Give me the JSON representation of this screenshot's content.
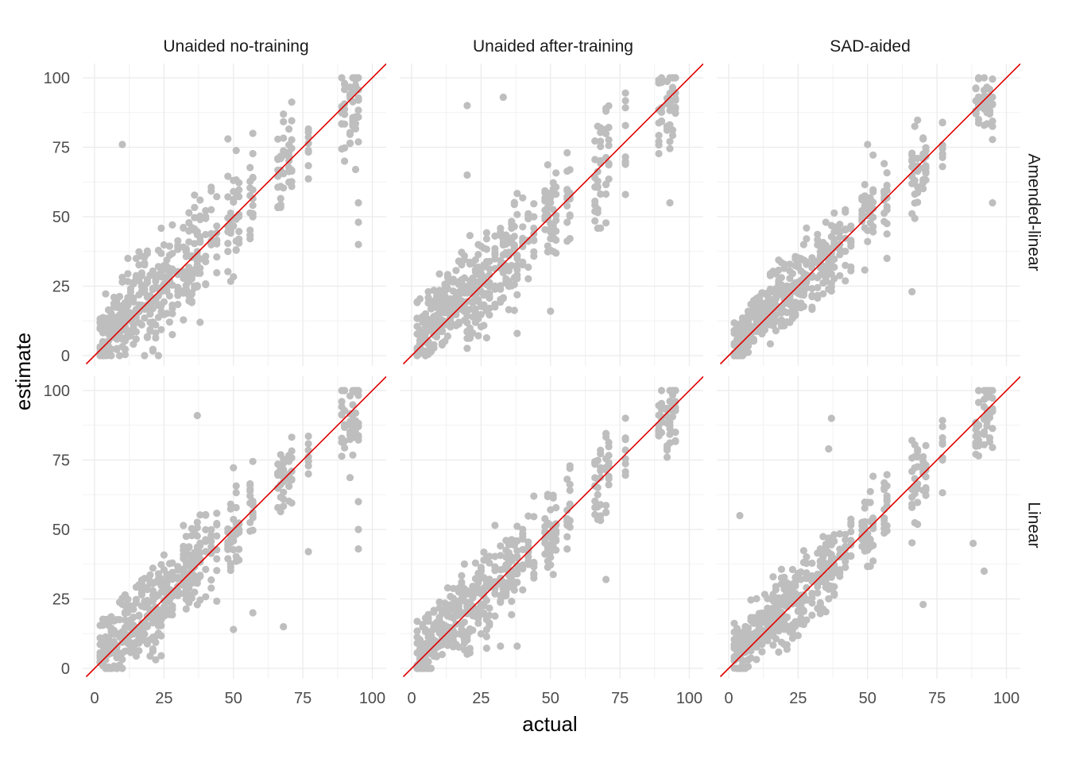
{
  "chart_data": {
    "type": "scatter",
    "facet_columns": [
      "Unaided no-training",
      "Unaided after-training",
      "SAD-aided"
    ],
    "facet_rows": [
      "Amended-linear",
      "Linear"
    ],
    "xlabel": "actual",
    "ylabel": "estimate",
    "xlim": [
      0,
      100
    ],
    "ylim": [
      0,
      100
    ],
    "x_ticks": [
      0,
      25,
      50,
      75,
      100
    ],
    "y_ticks": [
      0,
      25,
      50,
      75,
      100
    ],
    "grid": true,
    "point_color": "#bebebe",
    "reference_line": {
      "slope": 1,
      "intercept": 0,
      "color": "#e00000"
    },
    "actual_levels": [
      2,
      3,
      4,
      5,
      6,
      7,
      8,
      9,
      10,
      11,
      12,
      13,
      14,
      15,
      16,
      17,
      18,
      19,
      20,
      21,
      22,
      23,
      24,
      25,
      26,
      27,
      28,
      30,
      32,
      33,
      34,
      35,
      36,
      37,
      38,
      40,
      42,
      44,
      48,
      49,
      50,
      51,
      52,
      56,
      57,
      66,
      67,
      68,
      70,
      71,
      77,
      89,
      90,
      92,
      93,
      94,
      95
    ],
    "panels": [
      {
        "row": "Amended-linear",
        "col": "Unaided no-training",
        "spread": 9,
        "outliers": [
          [
            10,
            76
          ],
          [
            95,
            40
          ],
          [
            95,
            48
          ],
          [
            95,
            55
          ],
          [
            94,
            67
          ],
          [
            38,
            12
          ],
          [
            48,
            78
          ],
          [
            57,
            80
          ],
          [
            90,
            70
          ],
          [
            12,
            35
          ]
        ]
      },
      {
        "row": "Amended-linear",
        "col": "Unaided after-training",
        "spread": 9,
        "outliers": [
          [
            20,
            90
          ],
          [
            33,
            93
          ],
          [
            20,
            65
          ],
          [
            50,
            16
          ],
          [
            93,
            55
          ],
          [
            38,
            8
          ],
          [
            56,
            73
          ],
          [
            77,
            58
          ],
          [
            70,
            88
          ]
        ]
      },
      {
        "row": "Amended-linear",
        "col": "SAD-aided",
        "spread": 7,
        "outliers": [
          [
            95,
            55
          ],
          [
            66,
            23
          ],
          [
            50,
            76
          ],
          [
            57,
            35
          ],
          [
            35,
            48
          ],
          [
            70,
            78
          ],
          [
            77,
            84
          ]
        ]
      },
      {
        "row": "Linear",
        "col": "Unaided no-training",
        "spread": 8,
        "outliers": [
          [
            37,
            91
          ],
          [
            68,
            15
          ],
          [
            50,
            14
          ],
          [
            57,
            20
          ],
          [
            95,
            43
          ],
          [
            95,
            50
          ],
          [
            95,
            60
          ],
          [
            77,
            42
          ]
        ]
      },
      {
        "row": "Linear",
        "col": "Unaided after-training",
        "spread": 8,
        "outliers": [
          [
            32,
            8
          ],
          [
            38,
            8
          ],
          [
            70,
            32
          ],
          [
            57,
            72
          ],
          [
            44,
            62
          ],
          [
            20,
            12
          ]
        ]
      },
      {
        "row": "Linear",
        "col": "SAD-aided",
        "spread": 7,
        "outliers": [
          [
            37,
            90
          ],
          [
            36,
            79
          ],
          [
            4,
            55
          ],
          [
            70,
            23
          ],
          [
            88,
            45
          ],
          [
            92,
            35
          ],
          [
            56,
            65
          ],
          [
            12,
            6
          ]
        ]
      }
    ]
  }
}
